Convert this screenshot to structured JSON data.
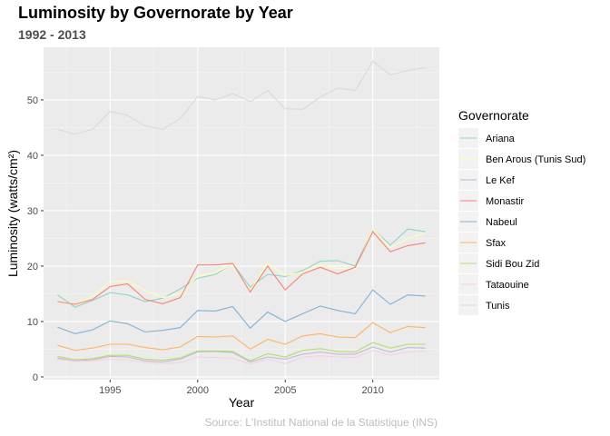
{
  "chart_data": {
    "type": "line",
    "title": "Luminosity by Governorate by Year",
    "subtitle": "1992 - 2013",
    "caption": "Source: L'Institut National de la Statistique (INS)",
    "xlabel": "Year",
    "ylabel": "Luminosity (watts/cm²)",
    "xlim": [
      1991.2,
      2013.8
    ],
    "ylim": [
      -0.5,
      59.5
    ],
    "xticks": [
      1995,
      2000,
      2005,
      2010
    ],
    "yticks": [
      0,
      10,
      20,
      30,
      40,
      50
    ],
    "grid": true,
    "legend_title": "Governorate",
    "legend_position": "right",
    "x": [
      1992,
      1993,
      1994,
      1995,
      1996,
      1997,
      1998,
      1999,
      2000,
      2001,
      2002,
      2003,
      2004,
      2005,
      2006,
      2007,
      2008,
      2009,
      2010,
      2011,
      2012,
      2013
    ],
    "series": [
      {
        "name": "Ariana",
        "color": "#8dd3c7",
        "values": [
          14.8,
          12.6,
          13.8,
          15.2,
          14.8,
          13.6,
          14.2,
          15.9,
          17.8,
          18.5,
          20.4,
          16.2,
          18.5,
          18.1,
          19.2,
          20.9,
          21.0,
          20.0,
          26.7,
          23.8,
          26.7,
          26.2
        ]
      },
      {
        "name": "Ben Arous (Tunis Sud)",
        "color": "#ffffb3",
        "values": [
          13.7,
          13.1,
          14.5,
          17.2,
          17.3,
          15.6,
          14.3,
          15.0,
          18.2,
          18.8,
          20.3,
          15.5,
          20.6,
          18.3,
          18.9,
          20.2,
          19.6,
          19.5,
          26.8,
          23.3,
          25.0,
          26.0
        ]
      },
      {
        "name": "Le Kef",
        "color": "#bebada",
        "values": [
          3.4,
          2.9,
          3.1,
          3.7,
          3.6,
          2.9,
          2.7,
          3.2,
          4.5,
          4.6,
          4.4,
          2.7,
          3.6,
          3.2,
          4.1,
          4.5,
          4.1,
          4.1,
          5.4,
          4.5,
          5.3,
          5.2
        ]
      },
      {
        "name": "Monastir",
        "color": "#fb8072",
        "values": [
          13.6,
          13.1,
          14.0,
          16.3,
          16.8,
          14.0,
          13.2,
          14.3,
          20.2,
          20.2,
          20.5,
          15.3,
          20.0,
          15.7,
          18.6,
          19.8,
          18.6,
          19.8,
          26.2,
          22.6,
          23.7,
          24.2
        ]
      },
      {
        "name": "Nabeul",
        "color": "#80b1d3",
        "values": [
          9.0,
          7.8,
          8.5,
          10.1,
          9.6,
          8.1,
          8.4,
          8.9,
          12.0,
          11.9,
          12.7,
          8.8,
          11.7,
          10.0,
          11.4,
          12.8,
          12.0,
          11.4,
          15.7,
          13.1,
          14.8,
          14.6
        ]
      },
      {
        "name": "Sfax",
        "color": "#fdb462",
        "values": [
          5.7,
          4.8,
          5.2,
          5.9,
          5.9,
          5.3,
          4.9,
          5.4,
          7.3,
          7.2,
          7.4,
          5.0,
          6.8,
          5.9,
          7.4,
          7.8,
          7.2,
          7.1,
          9.8,
          8.0,
          9.1,
          8.9
        ]
      },
      {
        "name": "Sidi Bou Zid",
        "color": "#b3de69",
        "values": [
          3.7,
          3.1,
          3.3,
          3.9,
          3.9,
          3.2,
          3.0,
          3.4,
          4.7,
          4.7,
          4.6,
          2.9,
          4.2,
          3.6,
          4.8,
          5.1,
          4.6,
          4.5,
          6.2,
          5.2,
          5.9,
          5.9
        ]
      },
      {
        "name": "Tataouine",
        "color": "#fccde5",
        "values": [
          3.2,
          2.8,
          2.9,
          3.2,
          3.1,
          2.6,
          2.4,
          2.6,
          3.6,
          3.5,
          3.4,
          2.3,
          3.2,
          2.4,
          3.6,
          3.8,
          3.6,
          3.5,
          4.8,
          3.9,
          4.5,
          4.7
        ]
      },
      {
        "name": "Tunis",
        "color": "#d9d9d9",
        "values": [
          44.7,
          43.8,
          44.7,
          47.9,
          47.2,
          45.3,
          44.7,
          46.6,
          50.6,
          50.0,
          51.1,
          49.7,
          51.7,
          48.4,
          48.3,
          50.5,
          52.1,
          51.7,
          57.0,
          54.5,
          55.3,
          55.8
        ]
      }
    ]
  }
}
